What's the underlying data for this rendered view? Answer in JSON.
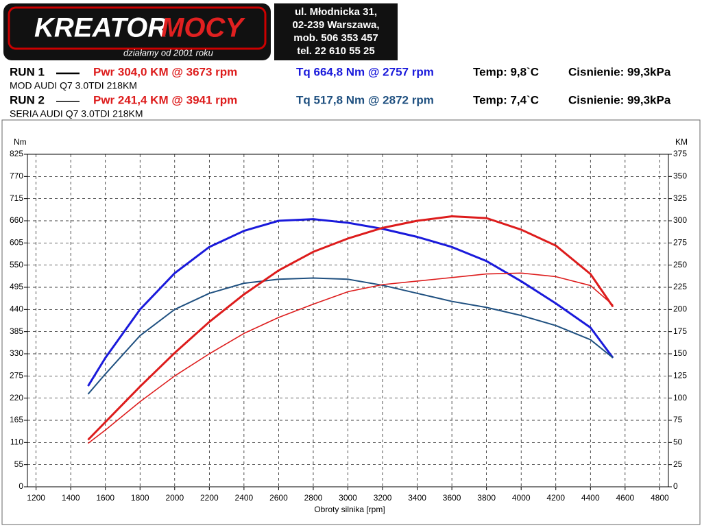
{
  "header": {
    "logo_left": "KREATOR",
    "logo_right": "MOCY",
    "slogan": "działamy od 2001 roku",
    "address": [
      "ul. Młodnicka 31,",
      "02-239  Warszawa,",
      "mob.  506 353 457",
      "tel.  22 610 55 25"
    ]
  },
  "runs": [
    {
      "label": "RUN 1",
      "pwr": "Pwr  304,0 KM @ 3673 rpm",
      "tq": "Tq 664,8 Nm @ 2757 rpm",
      "temp": "Temp: 9,8`C",
      "pressure": "Cisnienie: 99,3kPa",
      "car": "MOD AUDI Q7 3.0TDI 218KM",
      "tq_color": "#1a1adb"
    },
    {
      "label": "RUN 2",
      "pwr": "Pwr  241,4 KM @ 3941 rpm",
      "tq": "Tq 517,8 Nm @ 2872 rpm",
      "temp": "Temp: 7,4`C",
      "pressure": "Cisnienie: 99,3kPa",
      "car": "SERIA AUDI Q7 3.0TDI 218KM",
      "tq_color": "#1f5080"
    }
  ],
  "chart_data": {
    "type": "line",
    "xlabel": "Obroty silnika [rpm]",
    "ylabel": "Nm",
    "y2label": "KM",
    "x": [
      1500,
      1600,
      1800,
      2000,
      2200,
      2400,
      2600,
      2800,
      3000,
      3200,
      3400,
      3600,
      3800,
      4000,
      4200,
      4400,
      4530
    ],
    "xlim": [
      1150,
      4850
    ],
    "xticks": [
      1200,
      1400,
      1600,
      1800,
      2000,
      2200,
      2400,
      2600,
      2800,
      3000,
      3200,
      3400,
      3600,
      3800,
      4000,
      4200,
      4400,
      4600,
      4800
    ],
    "ylim": [
      0,
      825
    ],
    "yticks": [
      0,
      55,
      110,
      165,
      220,
      275,
      330,
      385,
      440,
      495,
      550,
      605,
      660,
      715,
      770,
      825
    ],
    "y2lim": [
      0,
      375
    ],
    "y2ticks": [
      0,
      25,
      50,
      75,
      100,
      125,
      150,
      175,
      200,
      225,
      250,
      275,
      300,
      325,
      350,
      375
    ],
    "grid": true,
    "series": [
      {
        "color": "#1a1adb",
        "line_width": 3,
        "values": [
          250,
          320,
          440,
          530,
          595,
          635,
          660,
          664,
          655,
          640,
          620,
          595,
          560,
          510,
          455,
          395,
          320
        ]
      },
      {
        "color": "#1f5080",
        "line_width": 2,
        "values": [
          230,
          280,
          375,
          440,
          480,
          505,
          515,
          518,
          515,
          500,
          480,
          460,
          445,
          425,
          400,
          365,
          320
        ]
      },
      {
        "color": "#dd1c1c",
        "line_width": 3,
        "axis": "y2",
        "values": [
          53,
          73,
          113,
          151,
          186,
          217,
          244,
          265,
          280,
          292,
          300,
          305,
          303,
          290,
          272,
          240,
          203
        ]
      },
      {
        "color": "#dd1c1c",
        "line_width": 1.6,
        "axis": "y2",
        "values": [
          49,
          64,
          96,
          125,
          150,
          173,
          191,
          206,
          220,
          228,
          232,
          236,
          240,
          241,
          237,
          227,
          205
        ]
      }
    ]
  }
}
